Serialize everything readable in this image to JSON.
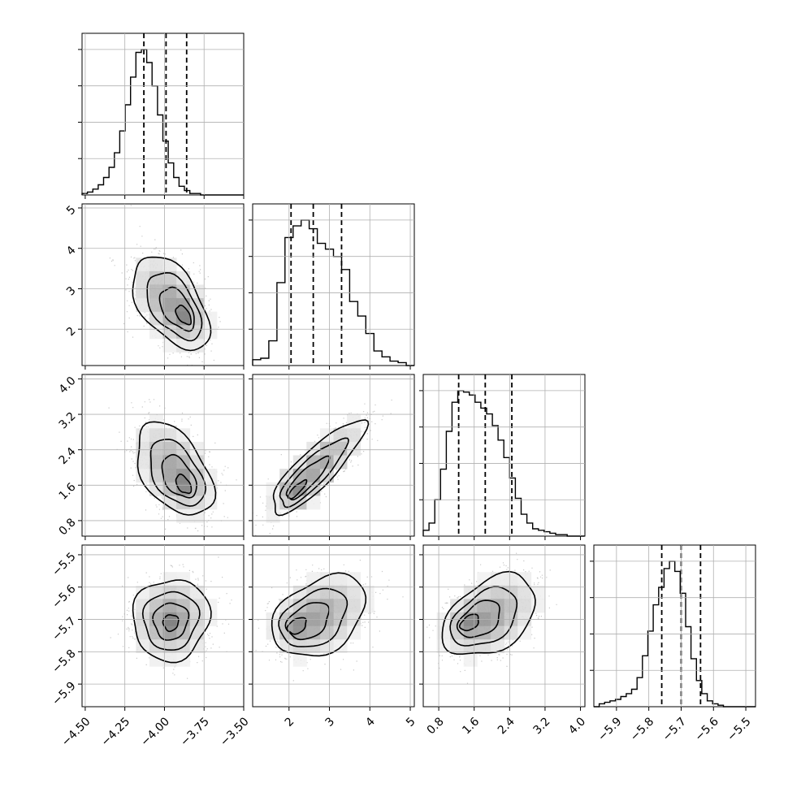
{
  "chart_data": {
    "type": "corner",
    "grid": true,
    "quantile_style": "dashed",
    "parameters": [
      {
        "range": [
          -4.52,
          -3.5
        ],
        "ticks": [
          -4.5,
          -4.25,
          -4.0,
          -3.75,
          -3.5
        ],
        "tick_labels": [
          "−4.50",
          "−4.25",
          "−4.00",
          "−3.75",
          "−3.50"
        ],
        "quantiles": [
          -4.13,
          -3.99,
          -3.86
        ],
        "hist_edges_start": -4.52,
        "hist_bin_width": 0.034,
        "hist": [
          1,
          2,
          4,
          7,
          12,
          19,
          29,
          44,
          62,
          81,
          98,
          100,
          91,
          75,
          55,
          37,
          22,
          12,
          6,
          3,
          1,
          1,
          0,
          0,
          0,
          0,
          0,
          0,
          0,
          0
        ],
        "hist_ymax": 100
      },
      {
        "range": [
          1.1,
          5.1
        ],
        "ticks": [
          2,
          3,
          4,
          5
        ],
        "tick_labels": [
          "2",
          "3",
          "4",
          "5"
        ],
        "quantiles": [
          2.05,
          2.6,
          3.3
        ],
        "hist_edges_start": 1.1,
        "hist_bin_width": 0.2,
        "hist": [
          4,
          5,
          17,
          57,
          88,
          96,
          100,
          94,
          84,
          80,
          75,
          66,
          44,
          34,
          22,
          10,
          6,
          3,
          2,
          0
        ],
        "hist_ymax": 100
      },
      {
        "range": [
          0.45,
          4.1
        ],
        "ticks": [
          0.8,
          1.6,
          2.4,
          3.2,
          4.0
        ],
        "tick_labels": [
          "0.8",
          "1.6",
          "2.4",
          "3.2",
          "4.0"
        ],
        "quantiles": [
          1.25,
          1.85,
          2.45
        ],
        "hist_edges_start": 0.45,
        "hist_bin_width": 0.13,
        "hist": [
          4,
          9,
          25,
          46,
          72,
          92,
          100,
          99,
          97,
          92,
          88,
          84,
          76,
          66,
          54,
          40,
          26,
          15,
          9,
          5,
          4,
          3,
          2,
          1,
          1,
          0,
          0,
          0
        ],
        "hist_ymax": 100
      },
      {
        "range": [
          -5.97,
          -5.47
        ],
        "ticks": [
          -5.9,
          -5.8,
          -5.7,
          -5.6,
          -5.5
        ],
        "tick_labels": [
          "−5.9",
          "−5.8",
          "−5.7",
          "−5.6",
          "−5.5"
        ],
        "quantiles": [
          -5.76,
          -5.7,
          -5.64
        ],
        "hist_edges_start": -5.97,
        "hist_bin_width": 0.0167,
        "hist": [
          0,
          2,
          3,
          4,
          5,
          7,
          9,
          12,
          20,
          35,
          52,
          70,
          82,
          95,
          100,
          93,
          78,
          55,
          33,
          18,
          9,
          4,
          2,
          1,
          0,
          0,
          0,
          0,
          0,
          0
        ],
        "hist_ymax": 100
      }
    ],
    "pairs": [
      {
        "row": 1,
        "col": 0,
        "mean": [
          -3.96,
          2.65
        ],
        "std": [
          0.115,
          0.55
        ],
        "corr": -0.5,
        "peak": [
          -3.88,
          2.35
        ]
      },
      {
        "row": 2,
        "col": 0,
        "mean": [
          -3.94,
          1.95
        ],
        "std": [
          0.115,
          0.5
        ],
        "corr": -0.45,
        "peak": [
          -3.88,
          1.62
        ]
      },
      {
        "row": 2,
        "col": 1,
        "mean": [
          2.7,
          2.0
        ],
        "std": [
          0.55,
          0.5
        ],
        "corr": 0.85,
        "peak": [
          2.2,
          1.5
        ]
      },
      {
        "row": 3,
        "col": 0,
        "mean": [
          -3.96,
          -5.7
        ],
        "std": [
          0.115,
          0.06
        ],
        "corr": 0.05,
        "peak": [
          -3.96,
          -5.71
        ]
      },
      {
        "row": 3,
        "col": 1,
        "mean": [
          2.75,
          -5.69
        ],
        "std": [
          0.55,
          0.06
        ],
        "corr": 0.35,
        "peak": [
          2.2,
          -5.72
        ]
      },
      {
        "row": 3,
        "col": 2,
        "mean": [
          1.95,
          -5.69
        ],
        "std": [
          0.5,
          0.06
        ],
        "corr": 0.4,
        "peak": [
          1.5,
          -5.71
        ]
      }
    ]
  }
}
